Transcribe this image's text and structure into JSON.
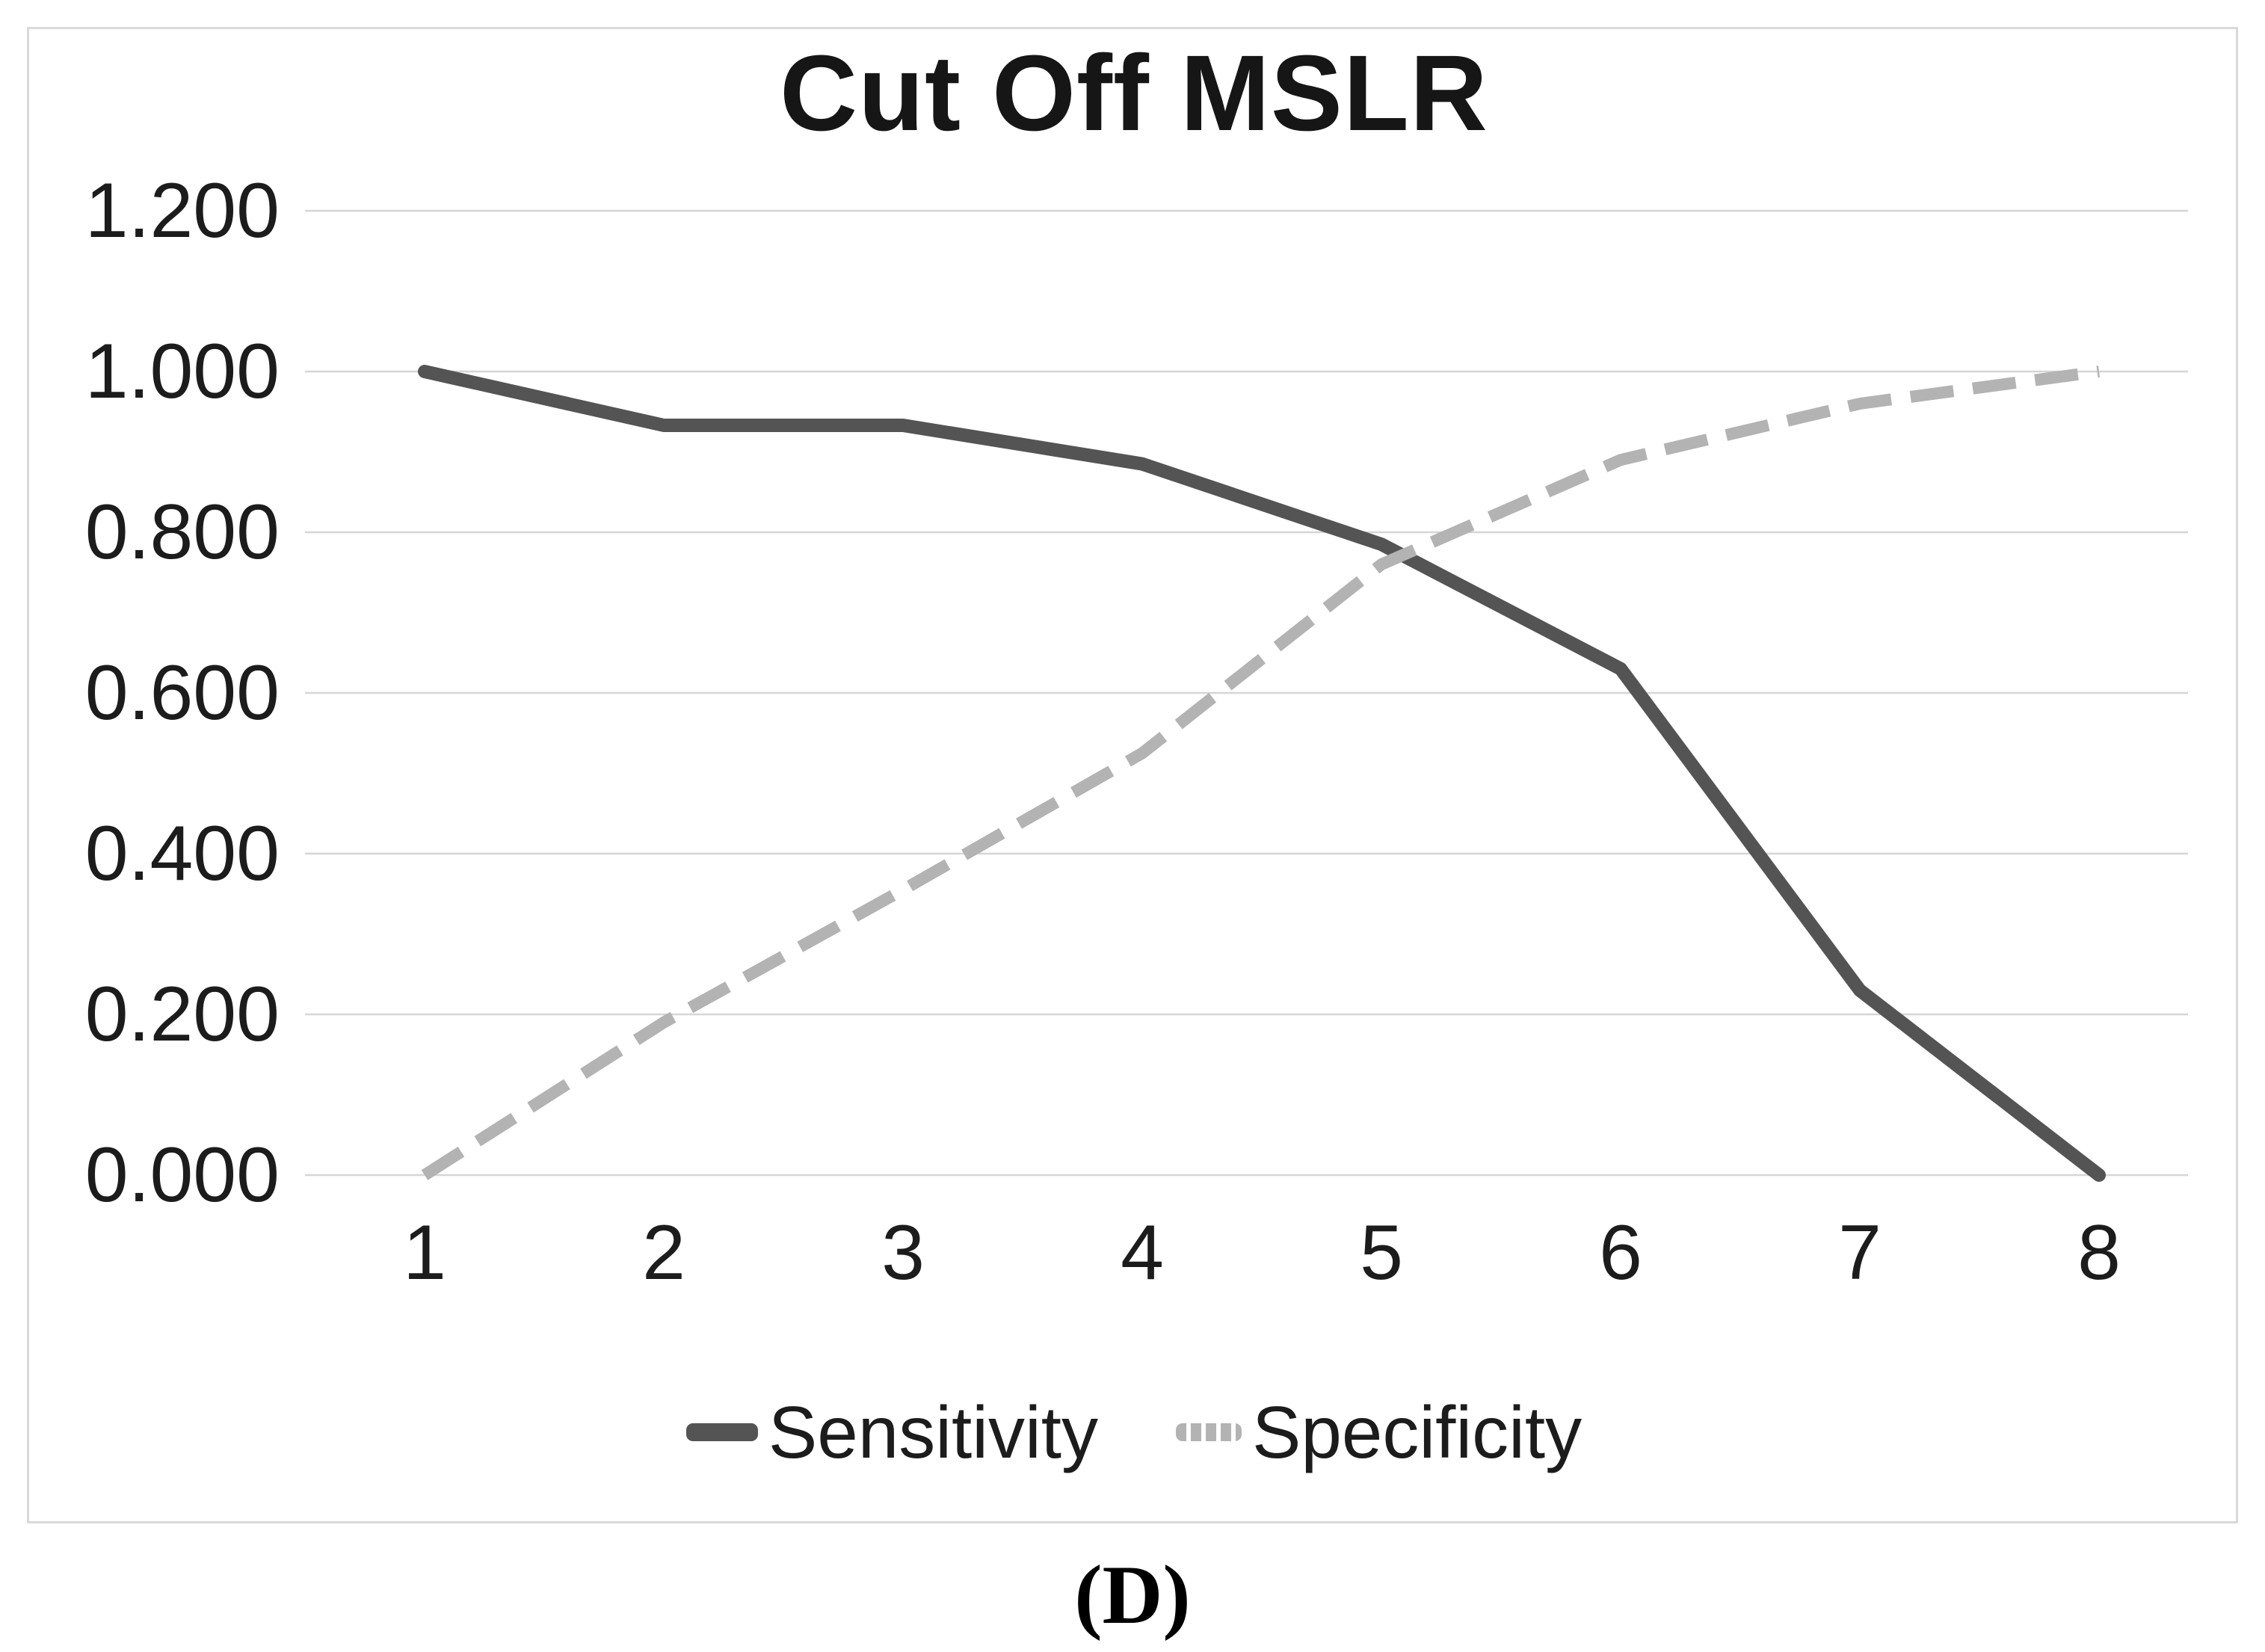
{
  "figure": {
    "caption": "(D)"
  },
  "chart_data": {
    "type": "line",
    "title": "Cut Off MSLR",
    "xlabel": "",
    "ylabel": "",
    "x": [
      1,
      2,
      3,
      4,
      5,
      6,
      7,
      8
    ],
    "series": [
      {
        "name": "Sensitivity",
        "values": [
          1.0,
          0.933,
          0.933,
          0.885,
          0.785,
          0.63,
          0.23,
          0.0
        ],
        "style": "solid",
        "color": "#545454"
      },
      {
        "name": "Specificity",
        "values": [
          0.0,
          0.19,
          0.355,
          0.525,
          0.76,
          0.89,
          0.96,
          1.0
        ],
        "style": "dashed",
        "color": "#b3b3b3"
      }
    ],
    "ylim": [
      0.0,
      1.2
    ],
    "yticks": [
      1.2,
      1.0,
      0.8,
      0.6,
      0.4,
      0.2,
      0.0
    ],
    "ytick_labels": [
      "1.200",
      "1.000",
      "0.800",
      "0.600",
      "0.400",
      "0.200",
      "0.000"
    ],
    "grid": "horizontal",
    "legend_position": "bottom"
  },
  "colors": {
    "gridline": "#d6d6d6",
    "border": "#d9d9d9",
    "text": "#1c1c1c"
  }
}
